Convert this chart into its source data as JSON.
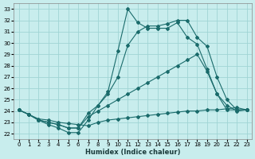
{
  "title": "",
  "xlabel": "Humidex (Indice chaleur)",
  "bg_color": "#c8eded",
  "grid_color": "#a0d4d4",
  "line_color": "#1a6b6b",
  "xlim": [
    -0.5,
    23.5
  ],
  "ylim": [
    21.5,
    33.5
  ],
  "xticks": [
    0,
    1,
    2,
    3,
    4,
    5,
    6,
    7,
    8,
    9,
    10,
    11,
    12,
    13,
    14,
    15,
    16,
    17,
    18,
    19,
    20,
    21,
    22,
    23
  ],
  "yticks": [
    22,
    23,
    24,
    25,
    26,
    27,
    28,
    29,
    30,
    31,
    32,
    33
  ],
  "lines": [
    {
      "x": [
        0,
        1,
        2,
        3,
        4,
        5,
        6,
        7,
        8,
        9,
        10,
        11,
        12,
        13,
        14,
        15,
        16,
        17,
        18,
        19,
        20,
        21,
        22,
        23
      ],
      "y": [
        24.1,
        23.7,
        23.2,
        22.8,
        22.5,
        22.1,
        22.1,
        23.2,
        24.5,
        25.7,
        29.3,
        33.0,
        31.8,
        31.3,
        31.3,
        31.3,
        31.8,
        30.5,
        29.9,
        27.7,
        25.5,
        24.1,
        24.1,
        24.1
      ]
    },
    {
      "x": [
        0,
        1,
        2,
        3,
        4,
        5,
        6,
        7,
        8,
        9,
        10,
        11,
        12,
        13,
        14,
        15,
        16,
        17,
        18,
        19,
        20,
        21,
        22,
        23
      ],
      "y": [
        24.1,
        23.7,
        23.2,
        23.0,
        22.8,
        22.5,
        22.5,
        23.8,
        24.5,
        25.5,
        27.0,
        29.8,
        31.0,
        31.5,
        31.5,
        31.7,
        32.0,
        32.0,
        30.5,
        29.7,
        27.0,
        25.0,
        24.1,
        24.1
      ]
    },
    {
      "x": [
        0,
        1,
        2,
        3,
        4,
        5,
        6,
        7,
        8,
        9,
        10,
        11,
        12,
        13,
        14,
        15,
        16,
        17,
        18,
        19,
        20,
        21,
        22,
        23
      ],
      "y": [
        24.1,
        23.7,
        23.2,
        23.0,
        22.8,
        22.5,
        22.5,
        23.5,
        24.0,
        24.5,
        25.0,
        25.5,
        26.0,
        26.5,
        27.0,
        27.5,
        28.0,
        28.5,
        29.0,
        27.5,
        25.5,
        24.5,
        24.0,
        24.1
      ]
    },
    {
      "x": [
        0,
        1,
        2,
        3,
        4,
        5,
        6,
        7,
        8,
        9,
        10,
        11,
        12,
        13,
        14,
        15,
        16,
        17,
        18,
        19,
        20,
        21,
        22,
        23
      ],
      "y": [
        24.1,
        23.7,
        23.3,
        23.2,
        23.0,
        22.9,
        22.8,
        22.7,
        23.0,
        23.2,
        23.3,
        23.4,
        23.5,
        23.6,
        23.7,
        23.8,
        23.9,
        24.0,
        24.0,
        24.1,
        24.1,
        24.2,
        24.3,
        24.1
      ]
    }
  ]
}
